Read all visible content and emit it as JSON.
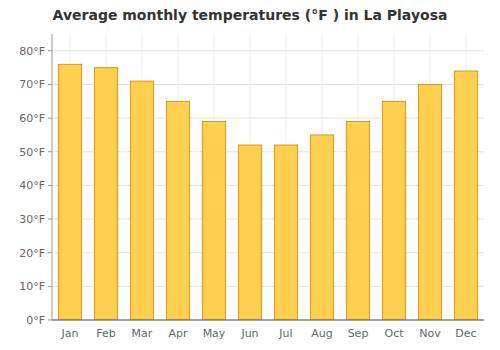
{
  "chart_data": {
    "type": "bar",
    "title": "Average monthly temperatures (°F ) in La Playosa",
    "categories": [
      "Jan",
      "Feb",
      "Mar",
      "Apr",
      "May",
      "Jun",
      "Jul",
      "Aug",
      "Sep",
      "Oct",
      "Nov",
      "Dec"
    ],
    "values": [
      76,
      75,
      71,
      65,
      59,
      52,
      52,
      55,
      59,
      65,
      70,
      74
    ],
    "color": "#FFD050",
    "ylim": [
      0,
      85
    ],
    "yticks": [
      {
        "value": 0,
        "label": "0°F"
      },
      {
        "value": 10,
        "label": "10°F"
      },
      {
        "value": 20,
        "label": "20°F"
      },
      {
        "value": 30,
        "label": "30°F"
      },
      {
        "value": 40,
        "label": "40°F"
      },
      {
        "value": 50,
        "label": "50°F"
      },
      {
        "value": 60,
        "label": "60°F"
      },
      {
        "value": 70,
        "label": "70°F"
      },
      {
        "value": 80,
        "label": "80°F"
      }
    ],
    "grid": true
  }
}
